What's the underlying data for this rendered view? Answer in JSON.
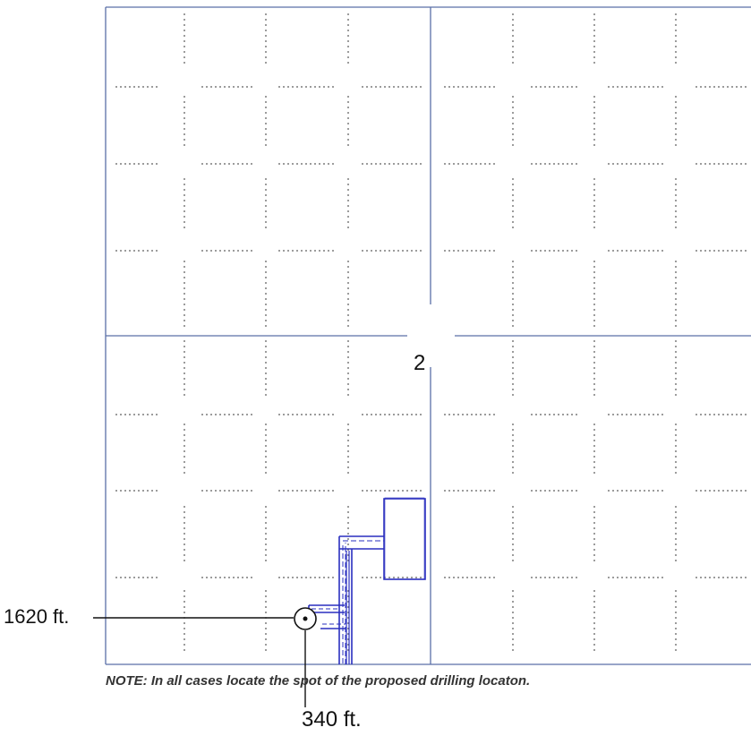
{
  "section": {
    "number": "2"
  },
  "distances": {
    "north_south": "1620 ft.",
    "east_west": "340 ft."
  },
  "note": "NOTE: In all cases locate the spot of the proposed drilling locaton.",
  "colors": {
    "grid": "#5b6fa8",
    "dots": "#555555",
    "ink": "#2a2fbf",
    "text": "#111111"
  }
}
